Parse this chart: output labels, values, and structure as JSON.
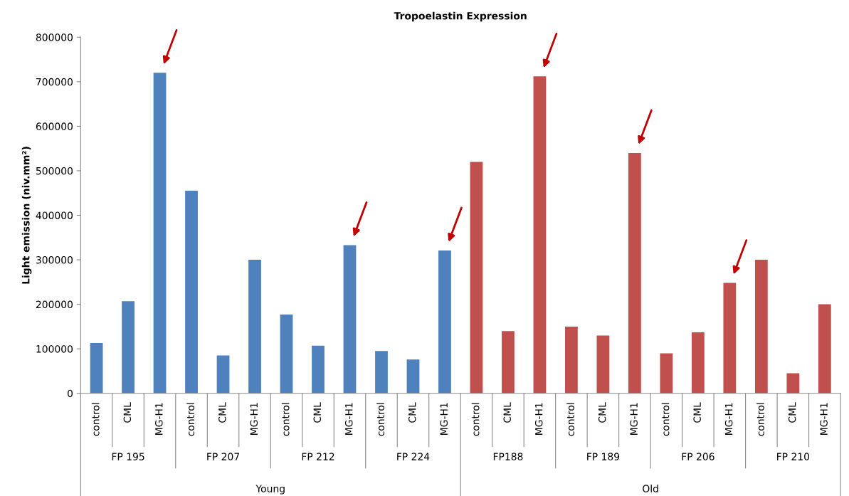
{
  "chart_data": {
    "type": "bar",
    "title": "Tropoelastin Expression",
    "ylabel": "Light emission (niv.mm²)",
    "categories": [
      "control",
      "CML",
      "MG-H1",
      "control",
      "CML",
      "MG-H1",
      "control",
      "CML",
      "MG-H1",
      "control",
      "CML",
      "MG-H1",
      "control",
      "CML",
      "MG-H1",
      "control",
      "CML",
      "MG-H1",
      "control",
      "CML",
      "MG-H1",
      "control",
      "CML",
      "MG-H1"
    ],
    "values": [
      113000,
      207000,
      720000,
      455000,
      85000,
      300000,
      177000,
      107000,
      333000,
      95000,
      76000,
      321000,
      520000,
      140000,
      712000,
      150000,
      130000,
      540000,
      90000,
      137000,
      248000,
      300000,
      45000,
      200000
    ],
    "colors": [
      "#4f81bd",
      "#4f81bd",
      "#4f81bd",
      "#4f81bd",
      "#4f81bd",
      "#4f81bd",
      "#4f81bd",
      "#4f81bd",
      "#4f81bd",
      "#4f81bd",
      "#4f81bd",
      "#4f81bd",
      "#c0504d",
      "#c0504d",
      "#c0504d",
      "#c0504d",
      "#c0504d",
      "#c0504d",
      "#c0504d",
      "#c0504d",
      "#c0504d",
      "#c0504d",
      "#c0504d",
      "#c0504d"
    ],
    "ylim": [
      0,
      800000
    ],
    "yticks": [
      0,
      100000,
      200000,
      300000,
      400000,
      500000,
      600000,
      700000,
      800000
    ],
    "annotations": [
      "FP 195",
      "FP 207",
      "FP 212",
      "FP 224",
      "FP188",
      "FP 189",
      "FP 206",
      "FP 210",
      "Young",
      "Old"
    ]
  }
}
